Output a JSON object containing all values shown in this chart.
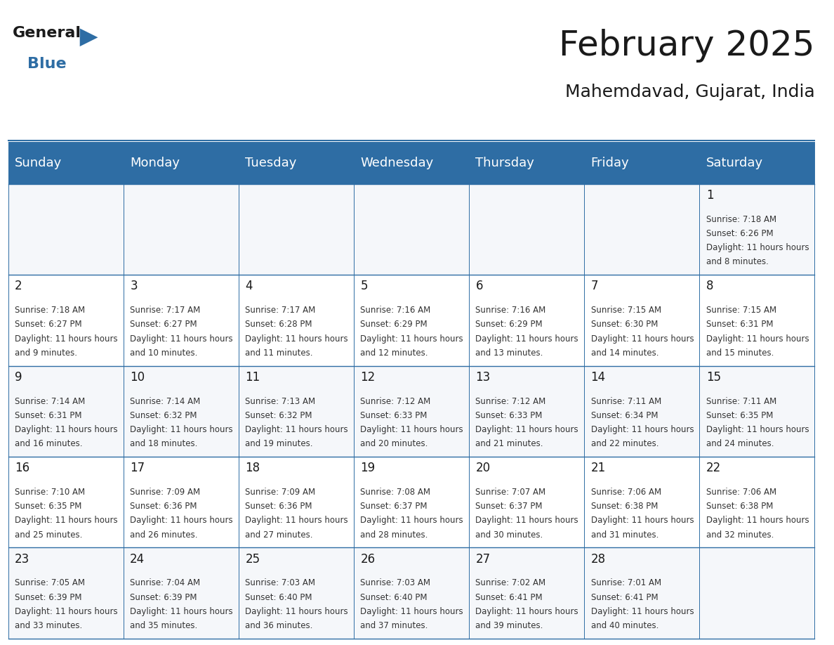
{
  "title": "February 2025",
  "subtitle": "Mahemdavad, Gujarat, India",
  "header_bg": "#2e6da4",
  "header_text_color": "#ffffff",
  "border_color": "#2e6da4",
  "days_of_week": [
    "Sunday",
    "Monday",
    "Tuesday",
    "Wednesday",
    "Thursday",
    "Friday",
    "Saturday"
  ],
  "calendar_data": [
    [
      null,
      null,
      null,
      null,
      null,
      null,
      {
        "day": 1,
        "sunrise": "7:18 AM",
        "sunset": "6:26 PM",
        "daylight": "11 hours and 8 minutes."
      }
    ],
    [
      {
        "day": 2,
        "sunrise": "7:18 AM",
        "sunset": "6:27 PM",
        "daylight": "11 hours and 9 minutes."
      },
      {
        "day": 3,
        "sunrise": "7:17 AM",
        "sunset": "6:27 PM",
        "daylight": "11 hours and 10 minutes."
      },
      {
        "day": 4,
        "sunrise": "7:17 AM",
        "sunset": "6:28 PM",
        "daylight": "11 hours and 11 minutes."
      },
      {
        "day": 5,
        "sunrise": "7:16 AM",
        "sunset": "6:29 PM",
        "daylight": "11 hours and 12 minutes."
      },
      {
        "day": 6,
        "sunrise": "7:16 AM",
        "sunset": "6:29 PM",
        "daylight": "11 hours and 13 minutes."
      },
      {
        "day": 7,
        "sunrise": "7:15 AM",
        "sunset": "6:30 PM",
        "daylight": "11 hours and 14 minutes."
      },
      {
        "day": 8,
        "sunrise": "7:15 AM",
        "sunset": "6:31 PM",
        "daylight": "11 hours and 15 minutes."
      }
    ],
    [
      {
        "day": 9,
        "sunrise": "7:14 AM",
        "sunset": "6:31 PM",
        "daylight": "11 hours and 16 minutes."
      },
      {
        "day": 10,
        "sunrise": "7:14 AM",
        "sunset": "6:32 PM",
        "daylight": "11 hours and 18 minutes."
      },
      {
        "day": 11,
        "sunrise": "7:13 AM",
        "sunset": "6:32 PM",
        "daylight": "11 hours and 19 minutes."
      },
      {
        "day": 12,
        "sunrise": "7:12 AM",
        "sunset": "6:33 PM",
        "daylight": "11 hours and 20 minutes."
      },
      {
        "day": 13,
        "sunrise": "7:12 AM",
        "sunset": "6:33 PM",
        "daylight": "11 hours and 21 minutes."
      },
      {
        "day": 14,
        "sunrise": "7:11 AM",
        "sunset": "6:34 PM",
        "daylight": "11 hours and 22 minutes."
      },
      {
        "day": 15,
        "sunrise": "7:11 AM",
        "sunset": "6:35 PM",
        "daylight": "11 hours and 24 minutes."
      }
    ],
    [
      {
        "day": 16,
        "sunrise": "7:10 AM",
        "sunset": "6:35 PM",
        "daylight": "11 hours and 25 minutes."
      },
      {
        "day": 17,
        "sunrise": "7:09 AM",
        "sunset": "6:36 PM",
        "daylight": "11 hours and 26 minutes."
      },
      {
        "day": 18,
        "sunrise": "7:09 AM",
        "sunset": "6:36 PM",
        "daylight": "11 hours and 27 minutes."
      },
      {
        "day": 19,
        "sunrise": "7:08 AM",
        "sunset": "6:37 PM",
        "daylight": "11 hours and 28 minutes."
      },
      {
        "day": 20,
        "sunrise": "7:07 AM",
        "sunset": "6:37 PM",
        "daylight": "11 hours and 30 minutes."
      },
      {
        "day": 21,
        "sunrise": "7:06 AM",
        "sunset": "6:38 PM",
        "daylight": "11 hours and 31 minutes."
      },
      {
        "day": 22,
        "sunrise": "7:06 AM",
        "sunset": "6:38 PM",
        "daylight": "11 hours and 32 minutes."
      }
    ],
    [
      {
        "day": 23,
        "sunrise": "7:05 AM",
        "sunset": "6:39 PM",
        "daylight": "11 hours and 33 minutes."
      },
      {
        "day": 24,
        "sunrise": "7:04 AM",
        "sunset": "6:39 PM",
        "daylight": "11 hours and 35 minutes."
      },
      {
        "day": 25,
        "sunrise": "7:03 AM",
        "sunset": "6:40 PM",
        "daylight": "11 hours and 36 minutes."
      },
      {
        "day": 26,
        "sunrise": "7:03 AM",
        "sunset": "6:40 PM",
        "daylight": "11 hours and 37 minutes."
      },
      {
        "day": 27,
        "sunrise": "7:02 AM",
        "sunset": "6:41 PM",
        "daylight": "11 hours and 39 minutes."
      },
      {
        "day": 28,
        "sunrise": "7:01 AM",
        "sunset": "6:41 PM",
        "daylight": "11 hours and 40 minutes."
      },
      null
    ]
  ],
  "logo_text_general": "General",
  "logo_text_blue": "Blue",
  "logo_color_general": "#1a1a1a",
  "logo_color_blue": "#2e6da4"
}
